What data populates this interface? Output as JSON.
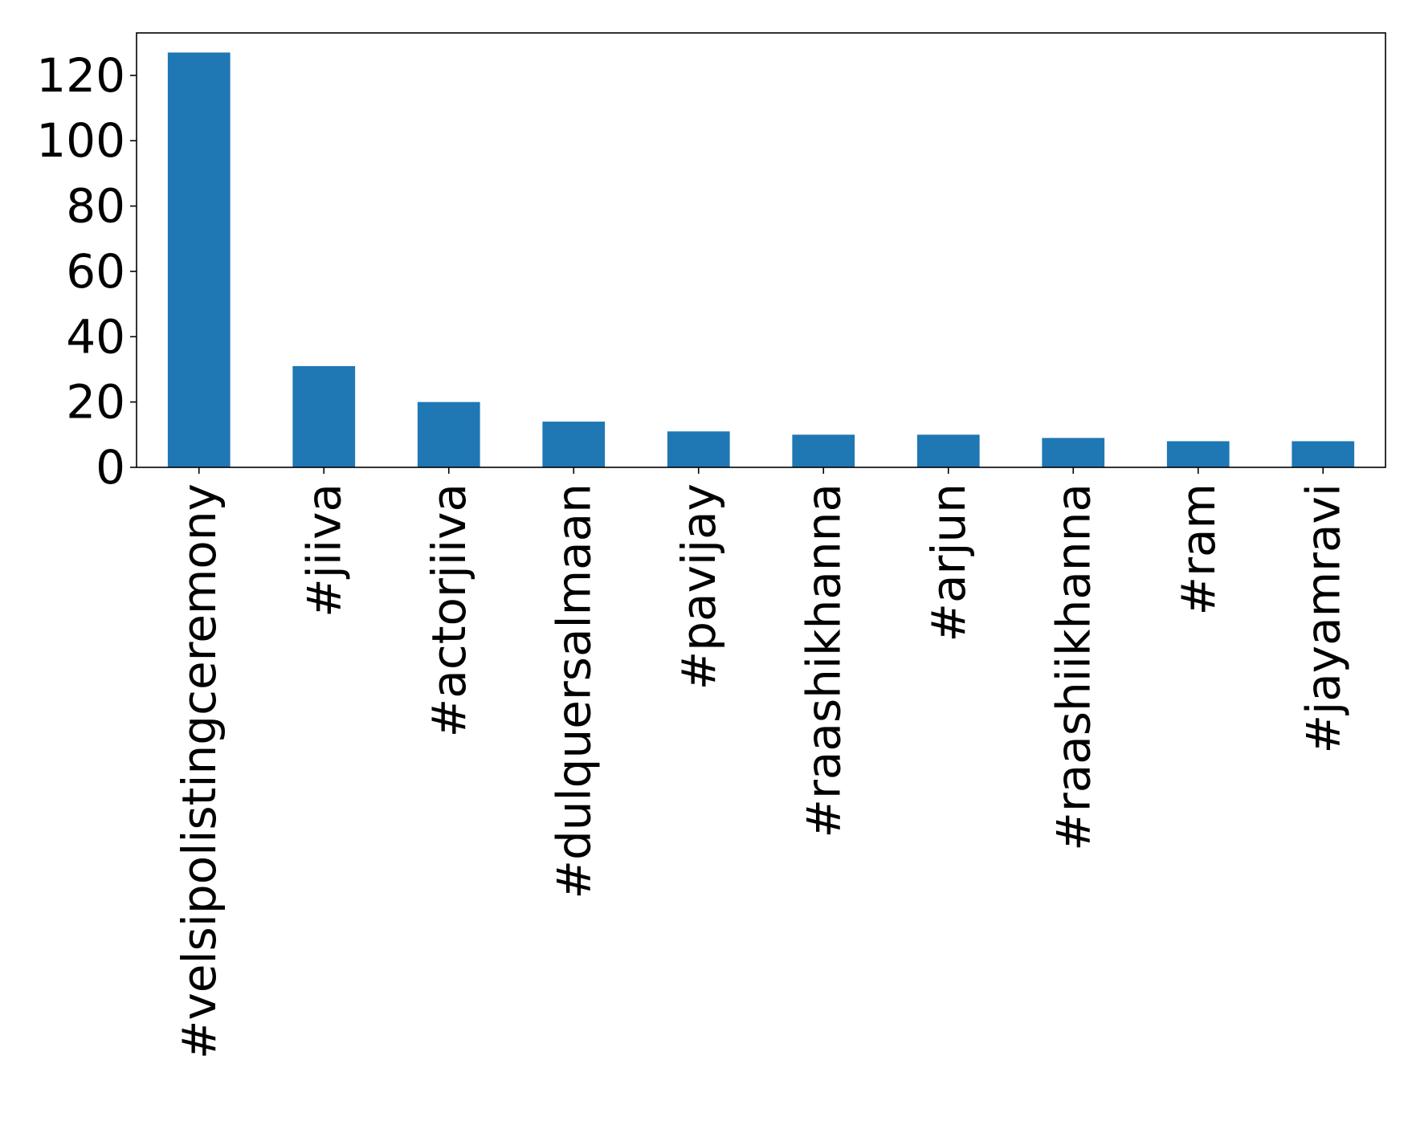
{
  "chart_data": {
    "type": "bar",
    "title": "",
    "xlabel": "",
    "ylabel": "",
    "categories": [
      "#velsipolistingceremony",
      "#jiiva",
      "#actorjiiva",
      "#dulquersalmaan",
      "#pavijay",
      "#raashikhanna",
      "#arjun",
      "#raashiikhanna",
      "#ram",
      "#jayamravi"
    ],
    "values": [
      127,
      31,
      20,
      14,
      11,
      10,
      10,
      9,
      8,
      8
    ],
    "ylim": [
      0,
      133
    ],
    "yticks": [
      0,
      20,
      40,
      60,
      80,
      100,
      120
    ],
    "grid": false,
    "legend": "none",
    "bar_color": "#1f77b4"
  }
}
